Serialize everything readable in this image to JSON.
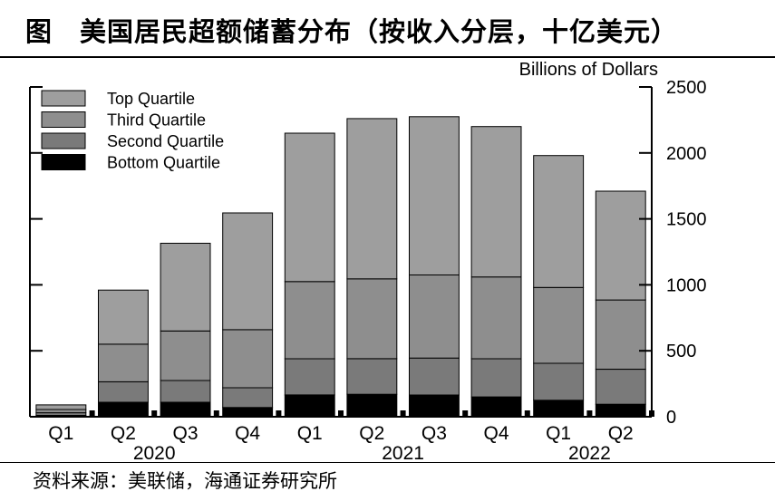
{
  "title": "图　美国居民超额储蓄分布（按收入分层，十亿美元）",
  "source": "资料来源：美联储，海通证券研究所",
  "chart_data": {
    "type": "bar",
    "stacked": true,
    "ylabel": "Billions of Dollars",
    "ylim": [
      0,
      2500
    ],
    "yticks": [
      0,
      500,
      1000,
      1500,
      2000,
      2500
    ],
    "y_axis_side": "right",
    "legend_position": "top-left",
    "grid": false,
    "categories": [
      "Q1",
      "Q2",
      "Q3",
      "Q4",
      "Q1",
      "Q2",
      "Q3",
      "Q4",
      "Q1",
      "Q2"
    ],
    "year_labels": [
      {
        "label": "2020",
        "categories": [
          "Q1",
          "Q2",
          "Q3",
          "Q4"
        ]
      },
      {
        "label": "2021",
        "categories": [
          "Q1",
          "Q2",
          "Q3",
          "Q4"
        ]
      },
      {
        "label": "2022",
        "categories": [
          "Q1",
          "Q2"
        ]
      }
    ],
    "series": [
      {
        "name": "Bottom Quartile",
        "color": "#000000",
        "values": [
          10,
          110,
          110,
          70,
          165,
          170,
          165,
          150,
          125,
          95
        ]
      },
      {
        "name": "Second Quartile",
        "color": "#7a7a7a",
        "values": [
          20,
          155,
          165,
          150,
          275,
          270,
          280,
          290,
          280,
          265
        ]
      },
      {
        "name": "Third Quartile",
        "color": "#8e8e8e",
        "values": [
          25,
          285,
          375,
          440,
          585,
          605,
          630,
          620,
          575,
          525
        ]
      },
      {
        "name": "Top Quartile",
        "color": "#9e9e9e",
        "values": [
          35,
          410,
          665,
          885,
          1125,
          1215,
          1200,
          1140,
          1000,
          825
        ]
      }
    ]
  }
}
